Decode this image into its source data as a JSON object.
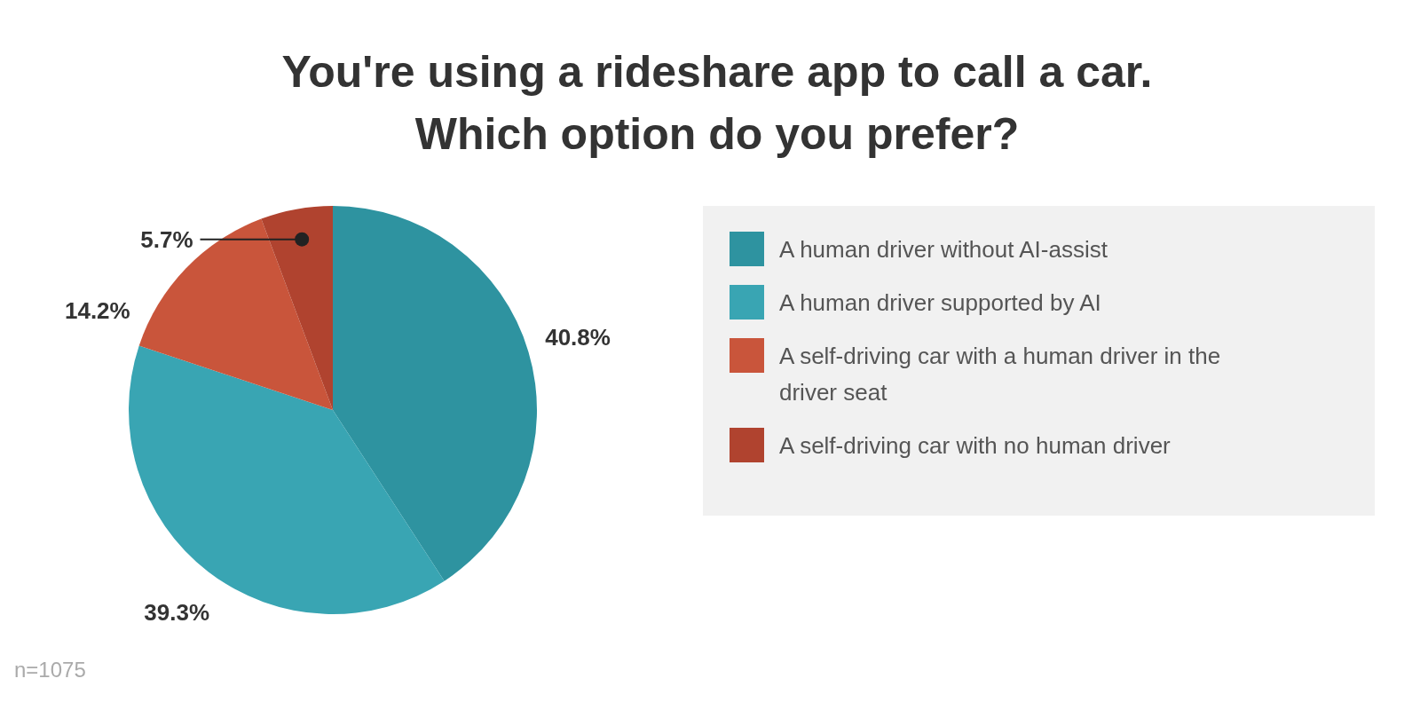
{
  "chart_data": {
    "type": "pie",
    "title": "You're using a rideshare app to call a car.\nWhich option do you prefer?",
    "categories": [
      "A human driver without AI-assist",
      "A human driver supported by AI",
      "A self-driving car with a human driver in the driver seat",
      "A self-driving car with no human driver"
    ],
    "values": [
      40.8,
      39.3,
      14.2,
      5.7
    ],
    "colors": [
      "#2e93a0",
      "#39a5b3",
      "#c9553b",
      "#b0432f"
    ],
    "value_labels": [
      "40.8%",
      "39.3%",
      "14.2%",
      "5.7%"
    ],
    "legend": "right",
    "annotations": [
      "n=1075"
    ]
  }
}
